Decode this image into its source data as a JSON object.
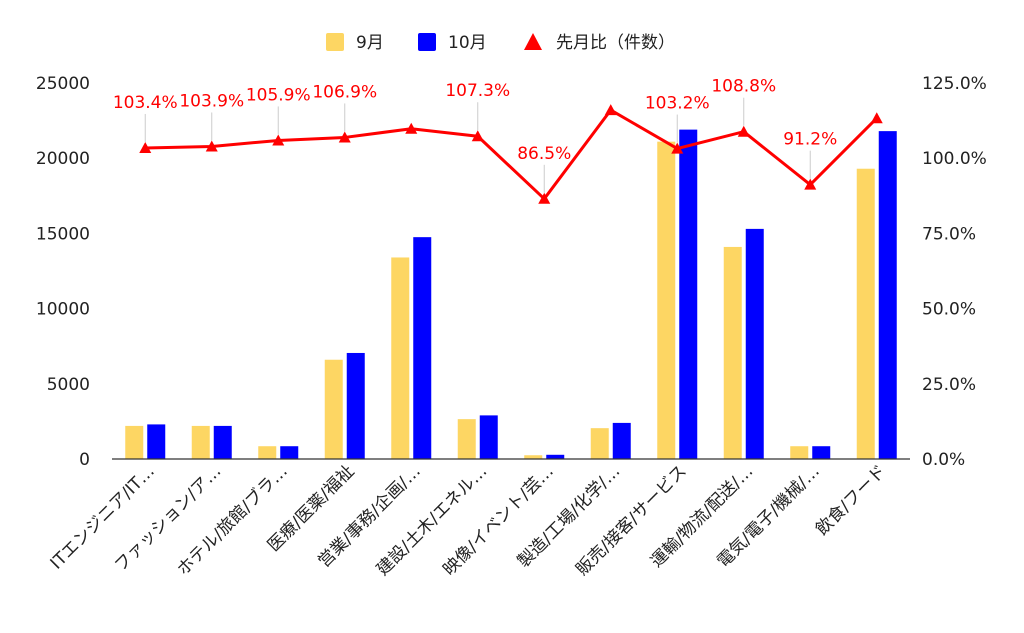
{
  "chart_data": {
    "type": "bar",
    "categories": [
      "ITエンジニア/IT…",
      "ファッション/ア…",
      "ホテル/旅館/ブラ…",
      "医療/医薬/福祉",
      "営業/事務/企画/…",
      "建設/土木/エネル…",
      "映像/イベント/芸…",
      "製造/工場/化学/…",
      "販売/接客/サービス",
      "運輸/物流/配送/…",
      "電気/電子/機械/…",
      "飲食/フード"
    ],
    "series": [
      {
        "name": "9月",
        "color": "#fdd663",
        "values": [
          2200,
          2200,
          850,
          6600,
          13400,
          2650,
          250,
          2050,
          21100,
          14100,
          850,
          19300
        ]
      },
      {
        "name": "10月",
        "color": "#0000ff",
        "values": [
          2300,
          2200,
          850,
          7050,
          14750,
          2900,
          280,
          2400,
          21900,
          15300,
          850,
          21800
        ]
      }
    ],
    "line_series": {
      "name": "先月比（件数）",
      "color": "#ff0000",
      "values": [
        103.4,
        103.9,
        105.9,
        106.9,
        109.8,
        107.3,
        86.5,
        116.0,
        103.2,
        108.8,
        91.2,
        113.3
      ],
      "labels": [
        "103.4%",
        "103.9%",
        "105.9%",
        "106.9%",
        "",
        "107.3%",
        "86.5%",
        "",
        "103.2%",
        "108.8%",
        "91.2%",
        ""
      ]
    },
    "y_left": {
      "ticks": [
        "0",
        "5000",
        "10000",
        "15000",
        "20000",
        "25000"
      ],
      "ylim": [
        0,
        25000
      ]
    },
    "y_right": {
      "ticks": [
        "0.0%",
        "25.0%",
        "50.0%",
        "75.0%",
        "100.0%",
        "125.0%"
      ],
      "ylim": [
        0,
        125
      ]
    },
    "legend_position": "top",
    "grid": false
  }
}
